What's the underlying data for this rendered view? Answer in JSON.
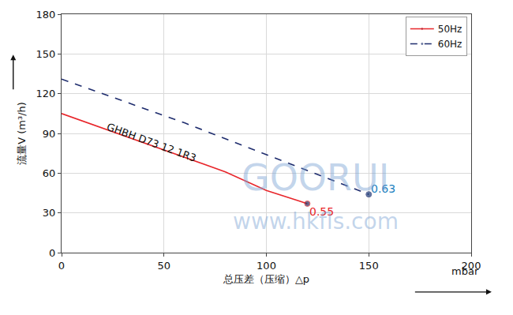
{
  "chart_data": {
    "type": "line",
    "x_label": "总压差（压缩）△p",
    "x_unit": "mbar",
    "y_label": "流量V (m³/h)",
    "xlim": [
      0,
      200
    ],
    "xticks": [
      0,
      50,
      100,
      150,
      200
    ],
    "ylim": [
      0,
      180
    ],
    "yticks": [
      0,
      30,
      60,
      90,
      120,
      150,
      180
    ],
    "grid": true,
    "legend": "upper right",
    "series": [
      {
        "name": "50Hz",
        "color": "#e8262b",
        "line_style": "solid",
        "marker": "end",
        "x": [
          0,
          20,
          40,
          60,
          80,
          100,
          120
        ],
        "values": [
          105,
          94,
          83,
          72,
          61,
          47,
          37
        ]
      },
      {
        "name": "60Hz",
        "color": "#1f2d6e",
        "line_style": "dash",
        "marker": "end",
        "x": [
          0,
          20,
          40,
          60,
          80,
          100,
          120,
          140,
          150
        ],
        "values": [
          131,
          120,
          109,
          98,
          86,
          74,
          62,
          50,
          44
        ]
      }
    ],
    "annotations": [
      {
        "text": "GHBH D73 12 1R3",
        "x": 44,
        "y": 83,
        "color": "#111111"
      },
      {
        "text": "0.55",
        "x": 127,
        "y": 31,
        "color": "#e8262b"
      },
      {
        "text": "0.63",
        "x": 157,
        "y": 48,
        "color": "#1c7fc0"
      }
    ],
    "watermark": [
      "GOORUI",
      "www.hkfls.com"
    ]
  }
}
